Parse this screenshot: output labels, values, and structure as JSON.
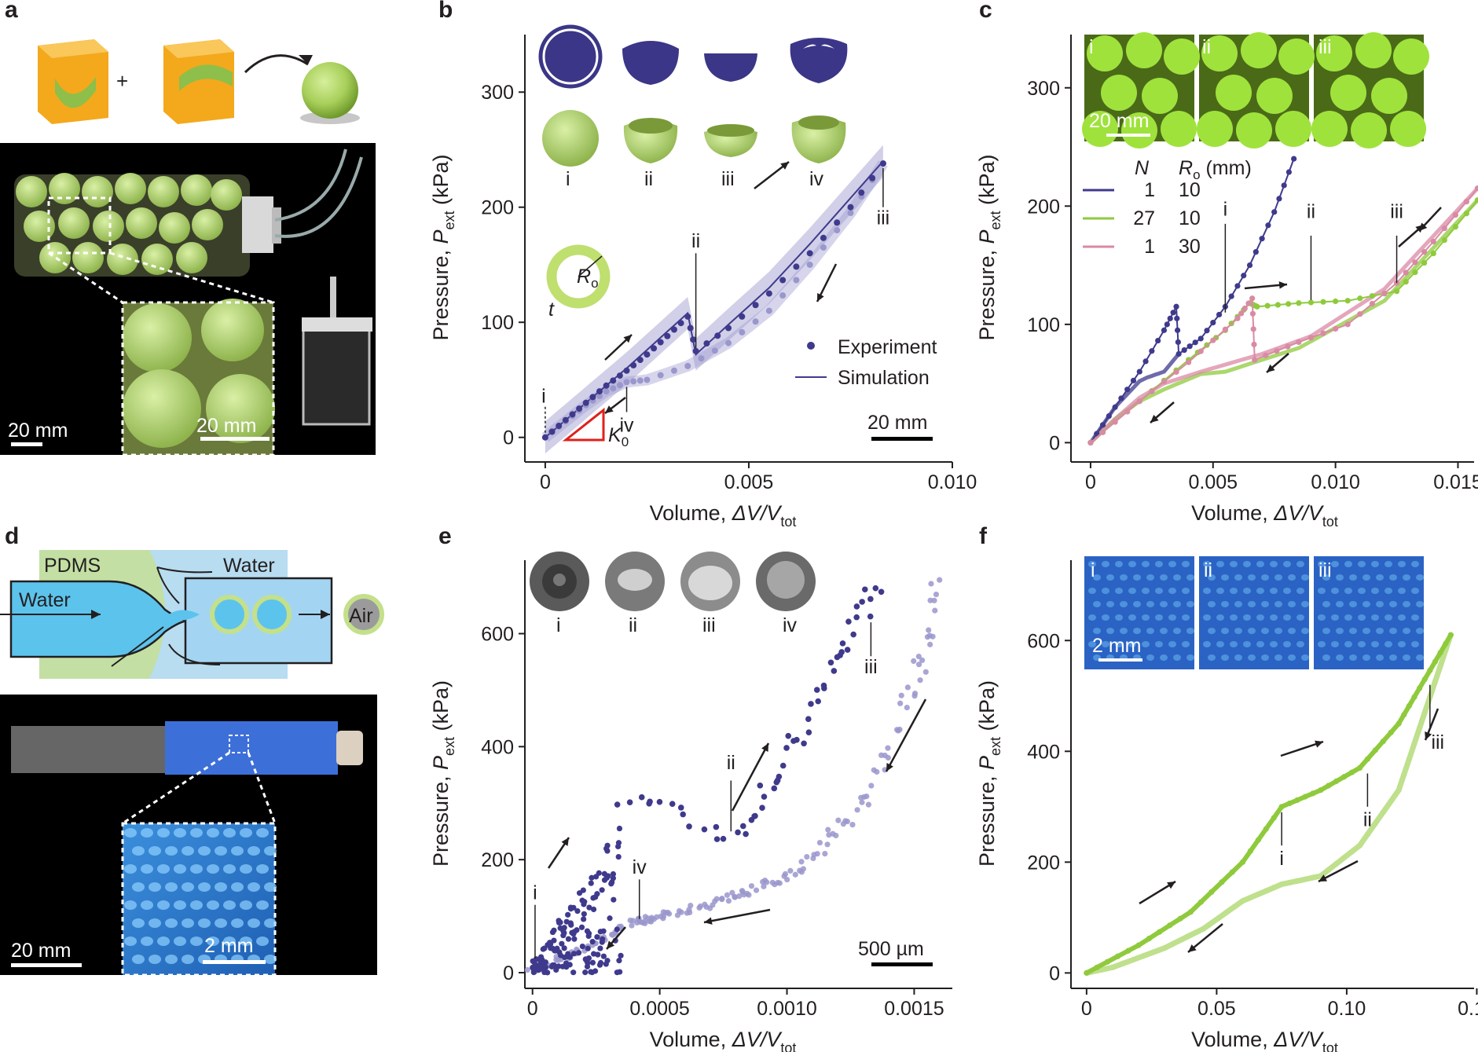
{
  "panels": {
    "a": {
      "letter": "a",
      "scale_main": "20 mm",
      "scale_inset": "20 mm",
      "plus": "+"
    },
    "d": {
      "letter": "d",
      "pdms": "PDMS",
      "water_left": "Water",
      "water_top": "Water",
      "air": "Air",
      "scale_main": "20 mm",
      "scale_inset": "2 mm"
    },
    "b": {
      "letter": "b",
      "roman": [
        "i",
        "ii",
        "iii",
        "iv"
      ],
      "Ro_R": "R",
      "Ro_sub": "o",
      "t": "t",
      "K_K": "K",
      "K_sub": "0",
      "scale": "20 mm"
    },
    "c": {
      "letter": "c",
      "photo_labels": [
        "i",
        "ii",
        "iii"
      ],
      "photo_scale": "20 mm",
      "table_head_N": "N",
      "table_head_R": "R",
      "table_head_R_sub": "o",
      "table_head_unit": " (mm)"
    },
    "e": {
      "letter": "e",
      "roman": [
        "i",
        "ii",
        "iii",
        "iv"
      ],
      "scale": "500 µm"
    },
    "f": {
      "letter": "f",
      "photo_labels": [
        "i",
        "ii",
        "iii"
      ],
      "photo_scale": "2 mm"
    }
  },
  "colors": {
    "dark": "#3f3a8c",
    "light": "#9a97cc",
    "green": "#8fca3c",
    "lightgreen": "#bfe08c",
    "pink": "#d98aa4",
    "red": "#e0201b"
  },
  "chart_data": [
    {
      "id": "b",
      "type": "line",
      "ylabel": "Pressure, P_ext (kPa)",
      "ylabel_main": "Pressure, ",
      "ylabel_P": "P",
      "ylabel_sub": "ext",
      "ylabel_unit": " (kPa)",
      "xlabel": "Volume, ΔV/V_tot",
      "xlabel_main": "Volume, ",
      "xlabel_var": "ΔV/V",
      "xlabel_sub": "tot",
      "xlim": [
        -0.0005,
        0.01
      ],
      "ylim": [
        -20,
        350
      ],
      "xticks": [
        0,
        0.005,
        0.01
      ],
      "xtick_labels": [
        "0",
        "0.005",
        "0.010"
      ],
      "yticks": [
        0,
        100,
        200,
        300
      ],
      "ytick_labels": [
        "0",
        "100",
        "200",
        "300"
      ],
      "legend": [
        "Experiment",
        "Simulation"
      ],
      "series": [
        {
          "name": "Experiment",
          "x": [
            0,
            0.0005,
            0.001,
            0.0015,
            0.002,
            0.0025,
            0.003,
            0.0035,
            0.0037,
            0.0045,
            0.0055,
            0.0065,
            0.0075,
            0.0083
          ],
          "y": [
            0,
            15,
            30,
            45,
            58,
            72,
            88,
            105,
            75,
            95,
            125,
            160,
            200,
            238
          ]
        },
        {
          "name": "Experiment-unload",
          "x": [
            0.0083,
            0.0075,
            0.0065,
            0.0055,
            0.0045,
            0.0035,
            0.0025,
            0.002,
            0.0015,
            0.001,
            0.0005,
            0
          ],
          "y": [
            238,
            195,
            150,
            110,
            82,
            62,
            50,
            48,
            40,
            28,
            14,
            0
          ]
        },
        {
          "name": "Simulation",
          "x": [
            0,
            0.001,
            0.002,
            0.003,
            0.0035,
            0.0037,
            0.0045,
            0.0055,
            0.0065,
            0.0075,
            0.0083
          ],
          "y": [
            0,
            30,
            60,
            92,
            108,
            72,
            98,
            130,
            168,
            208,
            240
          ]
        }
      ],
      "annotations": [
        "i",
        "ii",
        "iii",
        "iv"
      ]
    },
    {
      "id": "c",
      "type": "line",
      "ylabel": "Pressure, P_ext (kPa)",
      "ylabel_main": "Pressure, ",
      "ylabel_P": "P",
      "ylabel_sub": "ext",
      "ylabel_unit": " (kPa)",
      "xlabel": "Volume, ΔV/V_tot",
      "xlabel_main": "Volume, ",
      "xlabel_var": "ΔV/V",
      "xlabel_sub": "tot",
      "xlim": [
        -0.0008,
        0.0163
      ],
      "ylim": [
        -15,
        345
      ],
      "xticks": [
        0,
        0.005,
        0.01,
        0.015
      ],
      "xtick_labels": [
        "0",
        "0.005",
        "0.010",
        "0.015"
      ],
      "yticks": [
        0,
        100,
        200,
        300
      ],
      "ytick_labels": [
        "0",
        "100",
        "200",
        "300"
      ],
      "legend": [
        {
          "N": "1",
          "Ro": "10"
        },
        {
          "N": "27",
          "Ro": "10"
        },
        {
          "N": "1",
          "Ro": "30"
        }
      ],
      "series": [
        {
          "name": "N=1, Ro=10",
          "x": [
            0,
            0.001,
            0.002,
            0.003,
            0.0035,
            0.0036,
            0.0045,
            0.0055,
            0.0065,
            0.0075,
            0.0083
          ],
          "y": [
            0,
            30,
            60,
            95,
            115,
            75,
            88,
            115,
            150,
            195,
            240
          ]
        },
        {
          "name": "N=27, Ro=10",
          "x": [
            0,
            0.002,
            0.004,
            0.0055,
            0.0065,
            0.0068,
            0.0085,
            0.0105,
            0.0125,
            0.014,
            0.0158
          ],
          "y": [
            0,
            35,
            70,
            95,
            118,
            115,
            118,
            120,
            128,
            160,
            205
          ]
        },
        {
          "name": "N=1, Ro=30",
          "x": [
            0,
            0.002,
            0.004,
            0.006,
            0.0066,
            0.0067,
            0.0085,
            0.0105,
            0.0125,
            0.014,
            0.0158
          ],
          "y": [
            0,
            35,
            68,
            105,
            122,
            70,
            85,
            100,
            135,
            170,
            215
          ]
        }
      ],
      "annotations": [
        "i",
        "ii",
        "iii"
      ]
    },
    {
      "id": "e",
      "type": "scatter",
      "ylabel": "Pressure, P_ext (kPa)",
      "ylabel_main": "Pressure, ",
      "ylabel_P": "P",
      "ylabel_sub": "ext",
      "ylabel_unit": " (kPa)",
      "xlabel": "Volume, ΔV/V_tot",
      "xlabel_main": "Volume, ",
      "xlabel_var": "ΔV/V",
      "xlabel_sub": "tot",
      "xlim": [
        -3e-05,
        0.00165
      ],
      "ylim": [
        -25,
        730
      ],
      "xticks": [
        0,
        0.0005,
        0.001,
        0.0015
      ],
      "xtick_labels": [
        "0",
        "0.0005",
        "0.0010",
        "0.0015"
      ],
      "yticks": [
        0,
        200,
        400,
        600
      ],
      "ytick_labels": [
        "0",
        "200",
        "400",
        "600"
      ],
      "series": [
        {
          "name": "loading",
          "x": [
            0,
            0.0001,
            0.0002,
            0.0003,
            0.00035,
            0.0008,
            0.001,
            0.0012,
            0.00135
          ],
          "y": [
            10,
            70,
            150,
            260,
            310,
            240,
            380,
            560,
            680
          ]
        },
        {
          "name": "unloading",
          "x": [
            0.0016,
            0.0015,
            0.0013,
            0.0011,
            0.0009,
            0.0007,
            0.0005,
            0.0004,
            0.0002,
            0
          ],
          "y": [
            690,
            500,
            300,
            200,
            150,
            120,
            100,
            90,
            40,
            5
          ]
        }
      ],
      "annotations": [
        "i",
        "ii",
        "iii",
        "iv"
      ]
    },
    {
      "id": "f",
      "type": "line",
      "ylabel": "Pressure, P_ext (kPa)",
      "ylabel_main": "Pressure, ",
      "ylabel_P": "P",
      "ylabel_sub": "ext",
      "ylabel_unit": " (kPa)",
      "xlabel": "Volume, ΔV/V_tot",
      "xlabel_main": "Volume, ",
      "xlabel_var": "ΔV/V",
      "xlabel_sub": "tot",
      "xlim": [
        -0.006,
        0.155
      ],
      "ylim": [
        -25,
        745
      ],
      "xticks": [
        0,
        0.05,
        0.1,
        0.15
      ],
      "xtick_labels": [
        "0",
        "0.05",
        "0.10",
        "0.15"
      ],
      "yticks": [
        0,
        200,
        400,
        600
      ],
      "ytick_labels": [
        "0",
        "200",
        "400",
        "600"
      ],
      "series": [
        {
          "name": "loading",
          "x": [
            0,
            0.02,
            0.04,
            0.06,
            0.075,
            0.09,
            0.105,
            0.12,
            0.13,
            0.14
          ],
          "y": [
            0,
            50,
            110,
            200,
            300,
            330,
            370,
            450,
            530,
            610
          ]
        },
        {
          "name": "unloading",
          "x": [
            0.14,
            0.13,
            0.12,
            0.105,
            0.09,
            0.075,
            0.06,
            0.045,
            0.03,
            0.01,
            0
          ],
          "y": [
            610,
            470,
            330,
            230,
            175,
            160,
            130,
            80,
            45,
            10,
            0
          ]
        }
      ],
      "annotations": [
        "i",
        "ii",
        "iii"
      ]
    }
  ]
}
